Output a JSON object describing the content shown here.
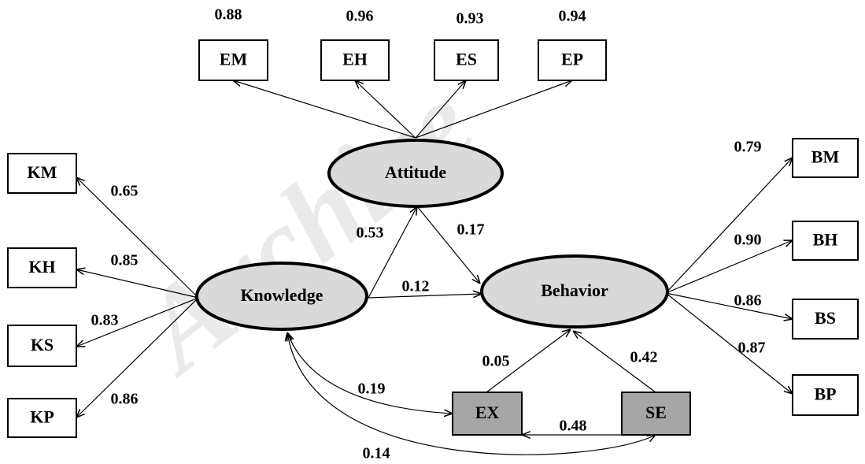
{
  "watermark": "Archive",
  "nodes": [
    {
      "label": "Attitude"
    },
    {
      "label": "Knowledge"
    },
    {
      "label": "Behavior"
    },
    {
      "label": "EM"
    },
    {
      "label": "EH"
    },
    {
      "label": "ES"
    },
    {
      "label": "EP"
    },
    {
      "label": "KM"
    },
    {
      "label": "KH"
    },
    {
      "label": "KS"
    },
    {
      "label": "KP"
    },
    {
      "label": "BM"
    },
    {
      "label": "BH"
    },
    {
      "label": "BS"
    },
    {
      "label": "BP"
    },
    {
      "label": "EX"
    },
    {
      "label": "SE"
    }
  ],
  "edges": [
    {
      "label": "0.88"
    },
    {
      "label": "0.96"
    },
    {
      "label": "0.93"
    },
    {
      "label": "0.94"
    },
    {
      "label": "0.65"
    },
    {
      "label": "0.85"
    },
    {
      "label": "0.83"
    },
    {
      "label": "0.86"
    },
    {
      "label": "0.79"
    },
    {
      "label": "0.90"
    },
    {
      "label": "0.86"
    },
    {
      "label": "0.87"
    },
    {
      "label": "0.53"
    },
    {
      "label": "0.17"
    },
    {
      "label": "0.12"
    },
    {
      "label": "0.05"
    },
    {
      "label": "0.42"
    },
    {
      "label": "0.19"
    },
    {
      "label": "0.48"
    },
    {
      "label": "0.14"
    }
  ]
}
